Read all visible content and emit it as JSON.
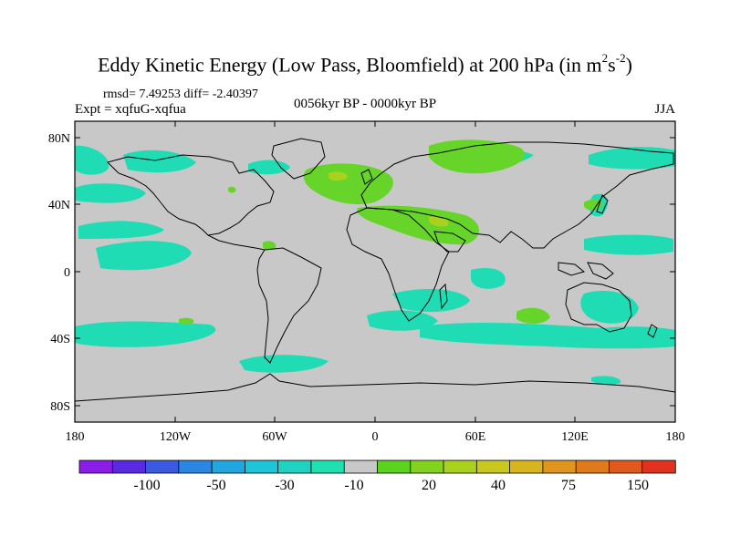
{
  "title": {
    "main": "Eddy Kinetic Energy (Low Pass, Bloomfield) at 200 hPa (in m",
    "sup1": "2",
    "mid": "s",
    "sup2": "-2",
    "close": ")"
  },
  "stats": "rmsd= 7.49253 diff= -2.40397",
  "expt": "Expt = xqfuG-xqfua",
  "period": "0056kyr BP - 0000kyr BP",
  "season": "JJA",
  "axes": {
    "lat_ticks": [
      "80N",
      "40N",
      "0",
      "40S",
      "80S"
    ],
    "lon_ticks": [
      "180",
      "120W",
      "60W",
      "0",
      "60E",
      "120E",
      "180"
    ]
  },
  "colorbar": {
    "labels": [
      "-100",
      "-50",
      "-30",
      "-10",
      "20",
      "40",
      "75",
      "150"
    ],
    "colors": [
      "#8a1ee6",
      "#5a2ae0",
      "#3c5ae0",
      "#2a86e0",
      "#22a6e0",
      "#1ec4d8",
      "#20d2c0",
      "#20e0b0",
      "#c8c8c8",
      "#5ad21e",
      "#82d21e",
      "#a8d21e",
      "#c8c81e",
      "#d8b41e",
      "#e0961e",
      "#e07a1e",
      "#e05a1e",
      "#e0321e"
    ]
  },
  "colors": {
    "background_field": "#c8c8c8",
    "cyan_anomaly": "#20dcb4",
    "green_anomaly": "#66d428",
    "yellow_green_anomaly": "#a8d21e",
    "coastline": "#000000"
  }
}
